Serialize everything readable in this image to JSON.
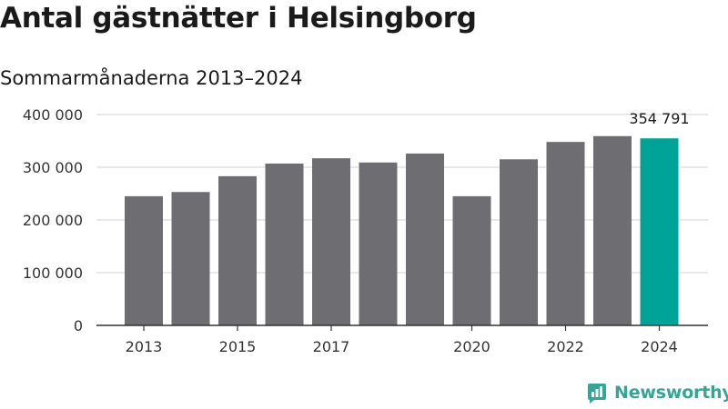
{
  "title": "Antal gästnätter i Helsingborg",
  "subtitle": "Sommarmånaderna 2013–2024",
  "brand": {
    "name": "Newsworthy",
    "color": "#34a596"
  },
  "colors": {
    "bar": "#6e6d72",
    "highlight": "#00a398",
    "grid": "#dcdcdc",
    "axis": "#333333"
  },
  "chart_data": {
    "type": "bar",
    "title": "Antal gästnätter i Helsingborg",
    "subtitle": "Sommarmånaderna 2013–2024",
    "categories": [
      "2013",
      "2014",
      "2015",
      "2016",
      "2017",
      "2018",
      "2019",
      "2020",
      "2021",
      "2022",
      "2023",
      "2024"
    ],
    "values": [
      245000,
      253000,
      283000,
      307000,
      317000,
      309000,
      326000,
      245000,
      315000,
      348000,
      359000,
      354791
    ],
    "x_tick_labels": [
      "2013",
      "2015",
      "2017",
      "2020",
      "2022",
      "2024"
    ],
    "y_ticks": [
      0,
      100000,
      200000,
      300000,
      400000
    ],
    "y_tick_labels": [
      "0",
      "100 000",
      "200 000",
      "300 000",
      "400 000"
    ],
    "ylim": [
      0,
      400000
    ],
    "grid": true,
    "legend": "none",
    "highlight_index": 11,
    "data_labels": [
      {
        "index": 11,
        "text": "354 791"
      }
    ]
  }
}
